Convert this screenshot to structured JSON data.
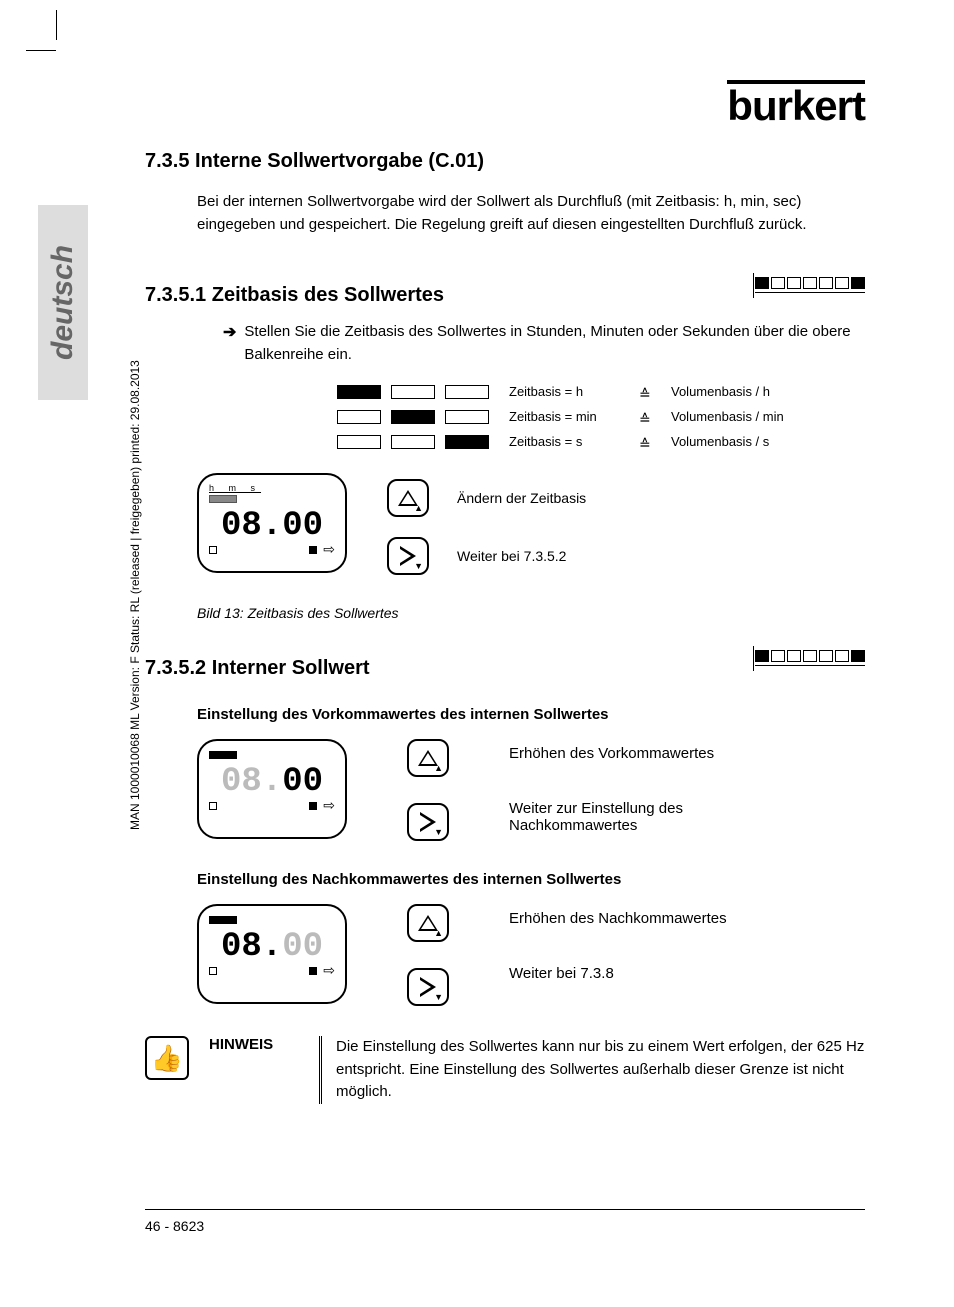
{
  "brand": "burkert",
  "section": {
    "number": "7.3.5",
    "title": "Interne Sollwertvorgabe (C.01)",
    "intro": "Bei der internen Sollwertvorgabe wird der Sollwert als Durchfluß (mit Zeitbasis: h, min, sec) eingegeben und gespeichert. Die Regelung greift auf diesen eingestellten Durchfluß zurück."
  },
  "sub1": {
    "number": "7.3.5.1",
    "title": "Zeitbasis des Sollwertes",
    "bullet": "Stellen Sie die Zeitbasis des Sollwertes in Stunden, Minuten oder Sekunden über die obere Balkenreihe ein.",
    "bar_pattern": [
      true,
      false,
      false,
      false,
      false,
      false,
      true
    ],
    "rows": [
      {
        "pattern": [
          true,
          false,
          false
        ],
        "label": "Zeitbasis = h",
        "vol": "Volumenbasis / h"
      },
      {
        "pattern": [
          false,
          true,
          false
        ],
        "label": "Zeitbasis = min",
        "vol": "Volumenbasis / min"
      },
      {
        "pattern": [
          false,
          false,
          true
        ],
        "label": "Zeitbasis = s",
        "vol": "Volumenbasis / s"
      }
    ],
    "lcd": {
      "top_labels": "h   m   s",
      "digits": "08.00"
    },
    "btn1_label": "Ändern der Zeitbasis",
    "btn2_label": "Weiter bei 7.3.5.2",
    "caption": "Bild  13: Zeitbasis des Sollwertes"
  },
  "sub2": {
    "number": "7.3.5.2",
    "title": "Interner Sollwert",
    "bar_pattern": [
      true,
      false,
      false,
      false,
      false,
      false,
      true
    ],
    "part1": {
      "heading": "Einstellung des Vorkommawertes des internen Sollwertes",
      "lcd_digits_pre": "08.",
      "lcd_digits_post": "00",
      "btn1_label": "Erhöhen des Vorkommawertes",
      "btn2_label": "Weiter zur Einstellung des Nachkommawertes"
    },
    "part2": {
      "heading": "Einstellung des Nachkommawertes des internen Sollwertes",
      "lcd_digits_pre": "08.",
      "lcd_digits_post": "00",
      "btn1_label": "Erhöhen des Nachkommawertes",
      "btn2_label": "Weiter bei 7.3.8"
    }
  },
  "hinweis": {
    "label": "HINWEIS",
    "text": "Die Einstellung des Sollwertes kann nur bis zu einem Wert erfolgen, der 625 Hz entspricht. Eine Einstellung des Sollwertes außerhalb dieser Grenze ist nicht möglich."
  },
  "footer": "46  -  8623",
  "side_lang": "deutsch",
  "side_meta": "MAN 1000010068 ML Version: F  Status: RL (released | freigegeben)  printed: 29.08.2013"
}
